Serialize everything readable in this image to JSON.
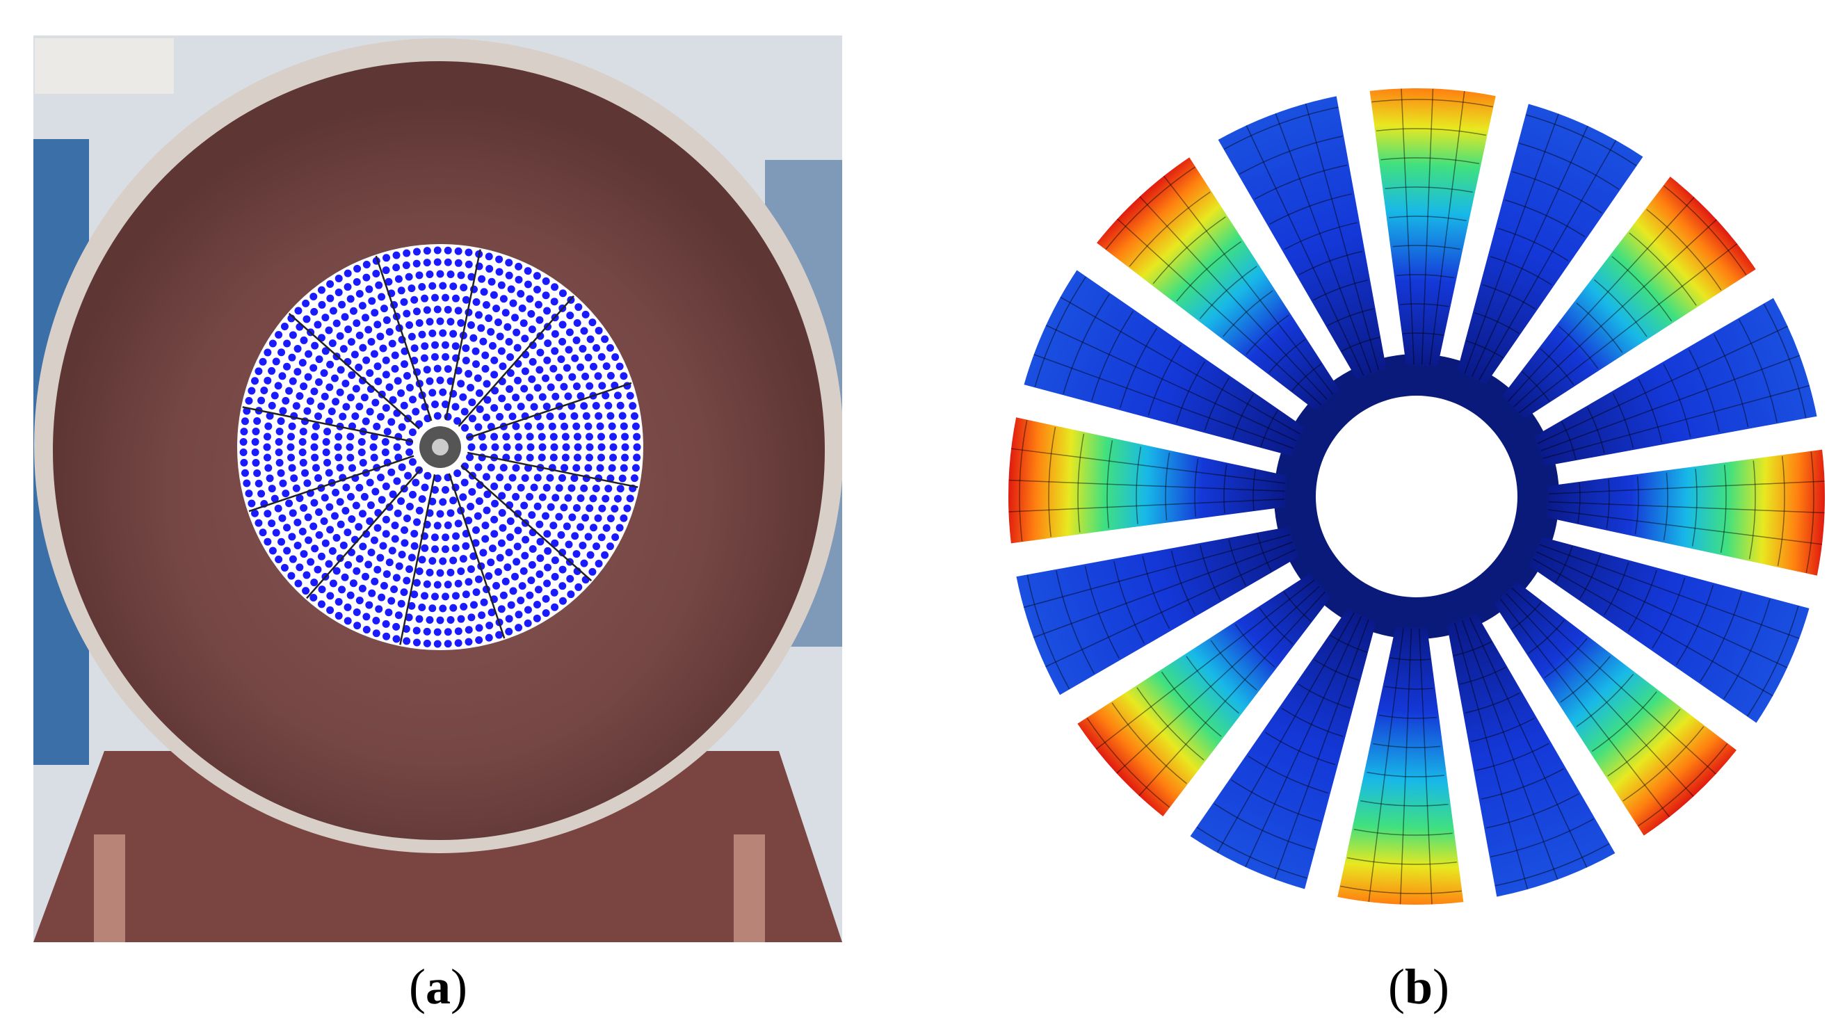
{
  "panels": [
    {
      "id": "a",
      "caption_open": "(",
      "caption_letter": "a",
      "caption_close": ")"
    },
    {
      "id": "b",
      "caption_open": "(",
      "caption_letter": "b",
      "caption_close": ")"
    }
  ],
  "photo": {
    "wall_color": "#d9dee4",
    "pipe_color": "#7b4b49",
    "rim_color": "#d8cfc8",
    "marker_color": "#1a1aff"
  },
  "mode_shape": {
    "blade_count": 16,
    "blade_peak_levels": [
      0.85,
      0,
      1,
      0,
      1,
      0,
      0.95,
      0,
      0.85,
      0,
      0.95,
      0,
      1,
      0,
      1,
      0
    ],
    "colormap": [
      "#0a1a8a",
      "#1438d8",
      "#18b8e8",
      "#40e080",
      "#e8e820",
      "#ff8010",
      "#e01a10"
    ]
  }
}
